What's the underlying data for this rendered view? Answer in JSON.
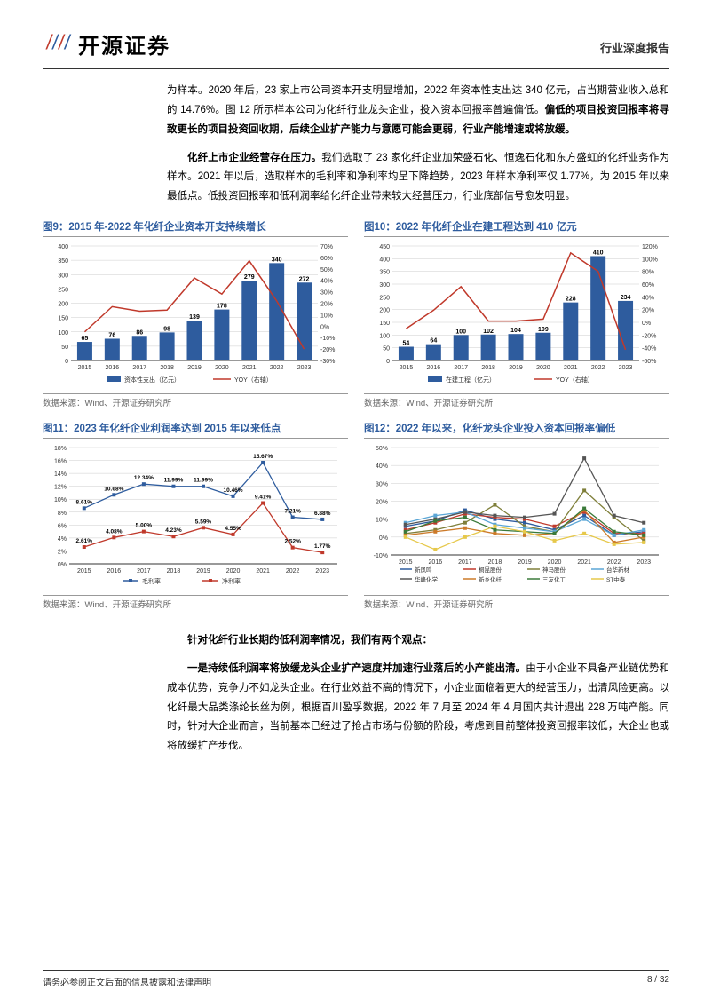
{
  "header": {
    "logo_text": "开源证券",
    "report_type": "行业深度报告"
  },
  "para1": "为样本。2020 年后，23 家上市公司资本开支明显增加，2022 年资本性支出达 340 亿元，占当期营业收入总和的 14.76%。图 12 所示样本公司为化纤行业龙头企业，投入资本回报率普遍偏低。",
  "para1_bold": "偏低的项目投资回报率将导致更长的项目投资回收期，后续企业扩产能力与意愿可能会更弱，行业产能增速或将放缓。",
  "para2_bold": "化纤上市企业经营存在压力。",
  "para2": "我们选取了 23 家化纤企业加荣盛石化、恒逸石化和东方盛虹的化纤业务作为样本。2021 年以后，选取样本的毛利率和净利率均呈下降趋势，2023 年样本净利率仅 1.77%，为 2015 年以来最低点。低投资回报率和低利润率给化纤企业带来较大经营压力，行业底部信号愈发明显。",
  "chart9": {
    "title": "图9：2015 年-2022 年化纤企业资本开支持续增长",
    "type": "bar-line",
    "categories": [
      "2015",
      "2016",
      "2017",
      "2018",
      "2019",
      "2020",
      "2021",
      "2022",
      "2023"
    ],
    "bar_values": [
      65,
      76,
      86,
      98,
      139,
      178,
      279,
      340,
      272
    ],
    "bar_color": "#2e5c9e",
    "line_values": [
      -5,
      17,
      13,
      14,
      42,
      28,
      57,
      22,
      -20
    ],
    "line_color": "#c0392b",
    "y1_max": 400,
    "y1_step": 50,
    "y2_min": -30,
    "y2_max": 70,
    "y2_step": 10,
    "bar_legend": "资本性支出（亿元）",
    "line_legend": "YOY（右轴）",
    "src": "数据来源：Wind、开源证券研究所"
  },
  "chart10": {
    "title": "图10：2022 年化纤企业在建工程达到 410 亿元",
    "type": "bar-line",
    "categories": [
      "2015",
      "2016",
      "2017",
      "2018",
      "2019",
      "2020",
      "2021",
      "2022",
      "2023"
    ],
    "bar_values": [
      54,
      64,
      100,
      102,
      104,
      109,
      228,
      410,
      234
    ],
    "bar_color": "#2e5c9e",
    "line_values": [
      -10,
      19,
      56,
      2,
      2,
      5,
      109,
      80,
      -43
    ],
    "line_color": "#c0392b",
    "y1_max": 450,
    "y1_step": 50,
    "y2_min": -60,
    "y2_max": 120,
    "y2_step": 20,
    "bar_legend": "在建工程（亿元）",
    "line_legend": "YOY（右轴）",
    "src": "数据来源：Wind、开源证券研究所"
  },
  "chart11": {
    "title": "图11：2023 年化纤企业利润率达到 2015 年以来低点",
    "type": "line",
    "categories": [
      "2015",
      "2016",
      "2017",
      "2018",
      "2019",
      "2020",
      "2021",
      "2022",
      "2023"
    ],
    "series": [
      {
        "name": "毛利率",
        "color": "#2e5c9e",
        "values": [
          8.61,
          10.68,
          12.34,
          11.99,
          11.99,
          10.46,
          15.67,
          7.21,
          6.88
        ]
      },
      {
        "name": "净利率",
        "color": "#c0392b",
        "values": [
          2.61,
          4.08,
          5.0,
          4.23,
          5.59,
          4.55,
          9.41,
          2.52,
          1.77
        ]
      }
    ],
    "y_max": 18,
    "y_step": 2,
    "show_labels": true,
    "src": "数据来源：Wind、开源证券研究所"
  },
  "chart12": {
    "title": "图12：2022 年以来，化纤龙头企业投入资本回报率偏低",
    "type": "line",
    "categories": [
      "2015",
      "2016",
      "2017",
      "2018",
      "2019",
      "2020",
      "2021",
      "2022",
      "2023"
    ],
    "series": [
      {
        "name": "新凤鸣",
        "color": "#2e5c9e",
        "values": [
          6,
          9,
          15,
          10,
          8,
          4,
          12,
          1,
          3
        ]
      },
      {
        "name": "桐昆股份",
        "color": "#c0392b",
        "values": [
          4,
          8,
          13,
          11,
          10,
          6,
          14,
          2,
          2
        ]
      },
      {
        "name": "神马股份",
        "color": "#7f7f3a",
        "values": [
          2,
          4,
          8,
          18,
          6,
          3,
          26,
          11,
          -2
        ]
      },
      {
        "name": "台华新材",
        "color": "#5aa6d6",
        "values": [
          8,
          12,
          14,
          7,
          5,
          3,
          10,
          1,
          4
        ]
      },
      {
        "name": "华峰化学",
        "color": "#555555",
        "values": [
          7,
          10,
          14,
          12,
          11,
          13,
          44,
          12,
          8
        ]
      },
      {
        "name": "新乡化纤",
        "color": "#cc7a29",
        "values": [
          1,
          3,
          5,
          2,
          1,
          2,
          15,
          -3,
          0
        ]
      },
      {
        "name": "三友化工",
        "color": "#3a7a3a",
        "values": [
          3,
          9,
          11,
          4,
          3,
          2,
          16,
          3,
          1
        ]
      },
      {
        "name": "ST中泰",
        "color": "#e6c84a",
        "values": [
          0,
          -7,
          0,
          6,
          3,
          -2,
          2,
          -4,
          -3
        ]
      }
    ],
    "y_min": -10,
    "y_max": 50,
    "y_step": 10,
    "show_labels": false,
    "src": "数据来源：Wind、开源证券研究所"
  },
  "para3_bold": "针对化纤行业长期的低利润率情况，我们有两个观点：",
  "para4_bold": "一是持续低利润率将放缓龙头企业扩产速度并加速行业落后的小产能出清。",
  "para4": "由于小企业不具备产业链优势和成本优势，竞争力不如龙头企业。在行业效益不高的情况下，小企业面临着更大的经营压力，出清风险更高。以化纤最大品类涤纶长丝为例，根据百川盈孚数据，2022 年 7 月至 2024 年 4 月国内共计退出 228 万吨产能。同时，针对大企业而言，当前基本已经过了抢占市场与份额的阶段，考虑到目前整体投资回报率较低，大企业也或将放缓扩产步伐。",
  "footer": {
    "disclaimer": "请务必参阅正文后面的信息披露和法律声明",
    "page": "8 / 32"
  },
  "colors": {
    "grid": "#cccccc",
    "axis": "#333333",
    "text": "#333333"
  }
}
